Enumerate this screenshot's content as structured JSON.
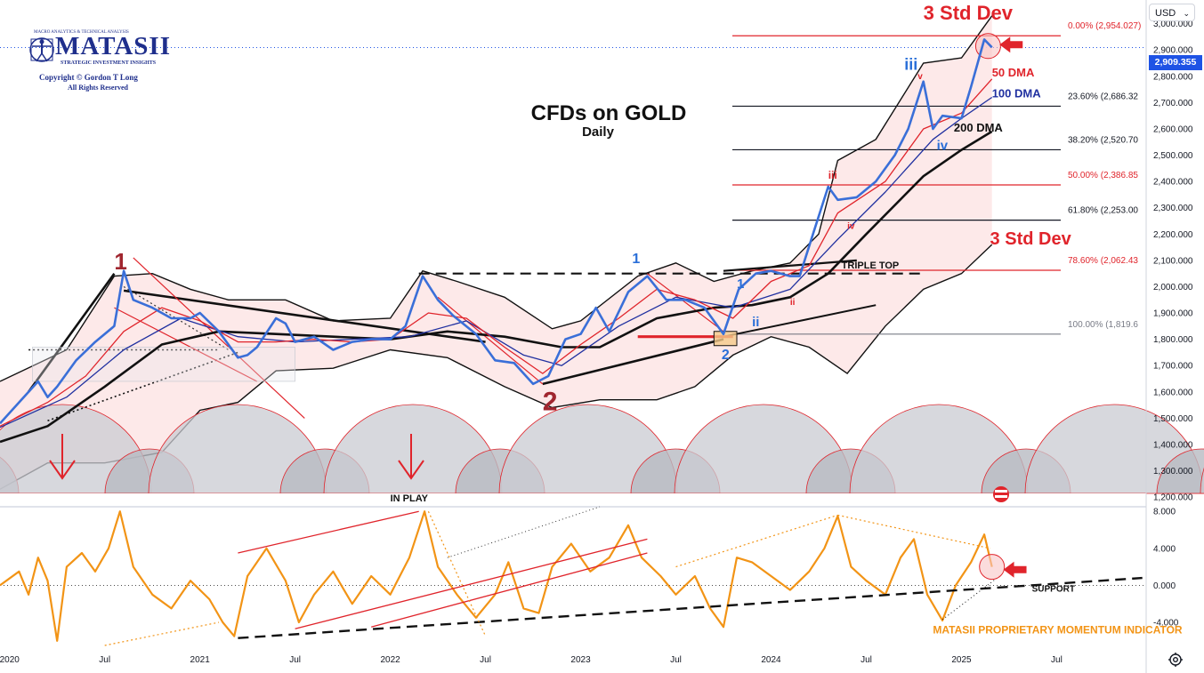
{
  "chart_data": {
    "type": "line",
    "title": "CFDs on GOLD",
    "subtitle": "Daily",
    "currency": "USD",
    "last_price": "2,909.355",
    "price_axis": {
      "ticks": [
        "3,000.000",
        "2,900.000",
        "2,800.000",
        "2,700.000",
        "2,600.000",
        "2,500.000",
        "2,400.000",
        "2,300.000",
        "2,200.000",
        "2,100.000",
        "2,000.000",
        "1,900.000",
        "1,800.000",
        "1,700.000",
        "1,600.000",
        "1,500.000",
        "1,400.000",
        "1,300.000",
        "1,200.000"
      ],
      "ylim": [
        1170,
        3090
      ]
    },
    "momentum_axis": {
      "ticks": [
        "8.000",
        "4.000",
        "0.000",
        "-4.000"
      ],
      "ylim": [
        -6.5,
        8.5
      ]
    },
    "time_axis": {
      "ticks": [
        {
          "label": "2020",
          "t": 2020.0
        },
        {
          "label": "Jul",
          "t": 2020.5
        },
        {
          "label": "2021",
          "t": 2021.0
        },
        {
          "label": "Jul",
          "t": 2021.5
        },
        {
          "label": "2022",
          "t": 2022.0
        },
        {
          "label": "Jul",
          "t": 2022.5
        },
        {
          "label": "2023",
          "t": 2023.0
        },
        {
          "label": "Jul",
          "t": 2023.5
        },
        {
          "label": "2024",
          "t": 2024.0
        },
        {
          "label": "Jul",
          "t": 2024.5
        },
        {
          "label": "2025",
          "t": 2025.0
        },
        {
          "label": "Jul",
          "t": 2025.5
        }
      ],
      "xlim": [
        2019.95,
        2025.97
      ]
    },
    "series": [
      {
        "name": "Gold",
        "color": "#3a6fd8",
        "points": [
          [
            2019.95,
            1480
          ],
          [
            2020.05,
            1560
          ],
          [
            2020.15,
            1640
          ],
          [
            2020.2,
            1580
          ],
          [
            2020.25,
            1620
          ],
          [
            2020.35,
            1720
          ],
          [
            2020.45,
            1790
          ],
          [
            2020.55,
            1850
          ],
          [
            2020.6,
            2060
          ],
          [
            2020.65,
            1950
          ],
          [
            2020.75,
            1920
          ],
          [
            2020.85,
            1880
          ],
          [
            2020.95,
            1880
          ],
          [
            2021.0,
            1900
          ],
          [
            2021.1,
            1830
          ],
          [
            2021.2,
            1730
          ],
          [
            2021.25,
            1740
          ],
          [
            2021.3,
            1770
          ],
          [
            2021.4,
            1880
          ],
          [
            2021.45,
            1860
          ],
          [
            2021.5,
            1790
          ],
          [
            2021.6,
            1810
          ],
          [
            2021.7,
            1760
          ],
          [
            2021.8,
            1790
          ],
          [
            2021.9,
            1800
          ],
          [
            2022.0,
            1800
          ],
          [
            2022.08,
            1850
          ],
          [
            2022.17,
            2040
          ],
          [
            2022.25,
            1950
          ],
          [
            2022.33,
            1890
          ],
          [
            2022.45,
            1820
          ],
          [
            2022.55,
            1720
          ],
          [
            2022.65,
            1710
          ],
          [
            2022.75,
            1630
          ],
          [
            2022.83,
            1660
          ],
          [
            2022.92,
            1800
          ],
          [
            2023.0,
            1820
          ],
          [
            2023.08,
            1920
          ],
          [
            2023.15,
            1830
          ],
          [
            2023.25,
            1980
          ],
          [
            2023.35,
            2040
          ],
          [
            2023.45,
            1950
          ],
          [
            2023.55,
            1950
          ],
          [
            2023.65,
            1920
          ],
          [
            2023.75,
            1820
          ],
          [
            2023.83,
            1990
          ],
          [
            2023.92,
            2050
          ],
          [
            2024.0,
            2060
          ],
          [
            2024.1,
            2040
          ],
          [
            2024.15,
            2040
          ],
          [
            2024.22,
            2200
          ],
          [
            2024.3,
            2380
          ],
          [
            2024.35,
            2330
          ],
          [
            2024.45,
            2340
          ],
          [
            2024.55,
            2400
          ],
          [
            2024.65,
            2500
          ],
          [
            2024.72,
            2600
          ],
          [
            2024.8,
            2780
          ],
          [
            2024.85,
            2600
          ],
          [
            2024.9,
            2650
          ],
          [
            2025.0,
            2640
          ],
          [
            2025.05,
            2760
          ],
          [
            2025.12,
            2940
          ],
          [
            2025.16,
            2910
          ]
        ]
      },
      {
        "name": "50 DMA",
        "color": "#e0242b",
        "points": [
          [
            2019.95,
            1470
          ],
          [
            2020.2,
            1560
          ],
          [
            2020.4,
            1660
          ],
          [
            2020.6,
            1830
          ],
          [
            2020.8,
            1920
          ],
          [
            2021.0,
            1870
          ],
          [
            2021.2,
            1790
          ],
          [
            2021.4,
            1790
          ],
          [
            2021.6,
            1800
          ],
          [
            2021.8,
            1790
          ],
          [
            2022.0,
            1800
          ],
          [
            2022.2,
            1900
          ],
          [
            2022.4,
            1880
          ],
          [
            2022.6,
            1770
          ],
          [
            2022.8,
            1670
          ],
          [
            2023.0,
            1780
          ],
          [
            2023.2,
            1880
          ],
          [
            2023.4,
            1990
          ],
          [
            2023.6,
            1950
          ],
          [
            2023.8,
            1880
          ],
          [
            2024.0,
            2020
          ],
          [
            2024.2,
            2080
          ],
          [
            2024.35,
            2280
          ],
          [
            2024.6,
            2400
          ],
          [
            2024.8,
            2600
          ],
          [
            2025.0,
            2660
          ],
          [
            2025.16,
            2790
          ]
        ]
      },
      {
        "name": "100 DMA",
        "color": "#2030a0",
        "points": [
          [
            2019.95,
            1465
          ],
          [
            2020.3,
            1580
          ],
          [
            2020.6,
            1760
          ],
          [
            2020.9,
            1880
          ],
          [
            2021.2,
            1810
          ],
          [
            2021.5,
            1790
          ],
          [
            2021.8,
            1800
          ],
          [
            2022.1,
            1810
          ],
          [
            2022.4,
            1870
          ],
          [
            2022.7,
            1740
          ],
          [
            2022.9,
            1700
          ],
          [
            2023.2,
            1850
          ],
          [
            2023.5,
            1960
          ],
          [
            2023.8,
            1920
          ],
          [
            2024.1,
            1990
          ],
          [
            2024.35,
            2180
          ],
          [
            2024.6,
            2360
          ],
          [
            2024.85,
            2560
          ],
          [
            2025.0,
            2640
          ],
          [
            2025.16,
            2720
          ]
        ]
      },
      {
        "name": "200 DMA",
        "color": "#111111",
        "points": [
          [
            2019.95,
            1410
          ],
          [
            2020.2,
            1470
          ],
          [
            2020.5,
            1620
          ],
          [
            2020.8,
            1780
          ],
          [
            2021.1,
            1830
          ],
          [
            2021.4,
            1820
          ],
          [
            2021.7,
            1810
          ],
          [
            2022.0,
            1800
          ],
          [
            2022.3,
            1830
          ],
          [
            2022.6,
            1810
          ],
          [
            2022.9,
            1770
          ],
          [
            2023.1,
            1770
          ],
          [
            2023.4,
            1880
          ],
          [
            2023.7,
            1920
          ],
          [
            2023.9,
            1930
          ],
          [
            2024.1,
            1960
          ],
          [
            2024.3,
            2050
          ],
          [
            2024.5,
            2200
          ],
          [
            2024.8,
            2420
          ],
          [
            2025.0,
            2520
          ],
          [
            2025.16,
            2590
          ]
        ]
      },
      {
        "name": "Momentum",
        "color": "#f29416",
        "points": [
          [
            2019.95,
            0.0
          ],
          [
            2020.05,
            1.5
          ],
          [
            2020.1,
            -1.0
          ],
          [
            2020.15,
            3.0
          ],
          [
            2020.2,
            0.5
          ],
          [
            2020.25,
            -6.0
          ],
          [
            2020.3,
            2.0
          ],
          [
            2020.38,
            3.5
          ],
          [
            2020.45,
            1.5
          ],
          [
            2020.52,
            4.0
          ],
          [
            2020.58,
            8.0
          ],
          [
            2020.65,
            2.0
          ],
          [
            2020.75,
            -1.0
          ],
          [
            2020.85,
            -2.5
          ],
          [
            2020.95,
            0.5
          ],
          [
            2021.05,
            -1.5
          ],
          [
            2021.12,
            -4.0
          ],
          [
            2021.18,
            -5.5
          ],
          [
            2021.25,
            1.0
          ],
          [
            2021.35,
            4.0
          ],
          [
            2021.45,
            0.5
          ],
          [
            2021.52,
            -4.0
          ],
          [
            2021.6,
            -1.0
          ],
          [
            2021.7,
            1.5
          ],
          [
            2021.8,
            -2.0
          ],
          [
            2021.9,
            1.0
          ],
          [
            2022.0,
            -1.0
          ],
          [
            2022.1,
            3.0
          ],
          [
            2022.18,
            8.0
          ],
          [
            2022.25,
            2.0
          ],
          [
            2022.35,
            -1.0
          ],
          [
            2022.45,
            -3.5
          ],
          [
            2022.55,
            -1.0
          ],
          [
            2022.62,
            2.5
          ],
          [
            2022.7,
            -2.5
          ],
          [
            2022.78,
            -3.0
          ],
          [
            2022.85,
            2.0
          ],
          [
            2022.95,
            4.5
          ],
          [
            2023.05,
            1.5
          ],
          [
            2023.15,
            3.0
          ],
          [
            2023.25,
            6.5
          ],
          [
            2023.32,
            3.0
          ],
          [
            2023.42,
            1.0
          ],
          [
            2023.5,
            -1.0
          ],
          [
            2023.6,
            1.0
          ],
          [
            2023.68,
            -2.5
          ],
          [
            2023.75,
            -4.5
          ],
          [
            2023.82,
            3.0
          ],
          [
            2023.9,
            2.5
          ],
          [
            2024.0,
            1.0
          ],
          [
            2024.1,
            -0.5
          ],
          [
            2024.2,
            1.5
          ],
          [
            2024.28,
            4.0
          ],
          [
            2024.35,
            7.5
          ],
          [
            2024.42,
            2.0
          ],
          [
            2024.5,
            0.5
          ],
          [
            2024.6,
            -1.0
          ],
          [
            2024.68,
            3.0
          ],
          [
            2024.75,
            5.0
          ],
          [
            2024.82,
            -1.0
          ],
          [
            2024.9,
            -3.8
          ],
          [
            2024.97,
            0.0
          ],
          [
            2025.05,
            2.5
          ],
          [
            2025.12,
            5.5
          ],
          [
            2025.16,
            2.0
          ]
        ]
      }
    ],
    "fibonacci": [
      {
        "label": "0.00% (2,954.027)",
        "value": 2954.027,
        "color": "#e0242b"
      },
      {
        "label": "23.60% (2,686.32",
        "value": 2686.32,
        "color": "#131722"
      },
      {
        "label": "38.20% (2,520.70",
        "value": 2520.7,
        "color": "#131722"
      },
      {
        "label": "50.00% (2,386.85",
        "value": 2386.85,
        "color": "#e0242b"
      },
      {
        "label": "61.80% (2,253.00",
        "value": 2253.0,
        "color": "#131722"
      },
      {
        "label": "78.60% (2,062.43",
        "value": 2062.43,
        "color": "#e0242b"
      },
      {
        "label": "100.00% (1,819.6",
        "value": 1819.6,
        "color": "#787b86"
      }
    ],
    "annotations": [
      {
        "text": "3 Std Dev",
        "color": "#e0242b",
        "t": 2024.8,
        "y": 3015,
        "size": 22
      },
      {
        "text": "3 Std Dev",
        "color": "#e0242b",
        "t": 2025.15,
        "y": 2160,
        "size": 20
      },
      {
        "text": "50 DMA",
        "color": "#e0242b",
        "t": 2025.16,
        "y": 2800,
        "size": 13
      },
      {
        "text": "100 DMA",
        "color": "#2030a0",
        "t": 2025.16,
        "y": 2720,
        "size": 13
      },
      {
        "text": "200 DMA",
        "color": "#111111",
        "t": 2024.96,
        "y": 2590,
        "size": 13
      },
      {
        "text": "TRIPLE TOP",
        "color": "#111111",
        "t": 2024.37,
        "y": 2070,
        "size": 11
      },
      {
        "text": "IN PLAY",
        "color": "#111111",
        "t": 2022.0,
        "y": 1183,
        "size": 11
      },
      {
        "text": "1",
        "color": "#a0262f",
        "t": 2020.55,
        "y": 2065,
        "size": 26
      },
      {
        "text": "2",
        "color": "#a0262f",
        "t": 2022.8,
        "y": 1530,
        "size": 30
      },
      {
        "text": "1",
        "color": "#2a6fd8",
        "t": 2023.27,
        "y": 2090,
        "size": 16
      },
      {
        "text": "2",
        "color": "#2a6fd8",
        "t": 2023.74,
        "y": 1725,
        "size": 16
      },
      {
        "text": "1",
        "color": "#2a6fd8",
        "t": 2023.82,
        "y": 1995,
        "size": 15
      },
      {
        "text": "ii",
        "color": "#2a6fd8",
        "t": 2023.9,
        "y": 1850,
        "size": 15
      },
      {
        "text": "iii",
        "color": "#2a6fd8",
        "t": 2024.7,
        "y": 2825,
        "size": 18
      },
      {
        "text": "iv",
        "color": "#2a6fd8",
        "t": 2024.87,
        "y": 2520,
        "size": 15
      },
      {
        "text": "iii",
        "color": "#e0242b",
        "t": 2024.3,
        "y": 2410,
        "size": 12
      },
      {
        "text": "iv",
        "color": "#e0242b",
        "t": 2024.4,
        "y": 2220,
        "size": 10
      },
      {
        "text": "v",
        "color": "#e0242b",
        "t": 2024.77,
        "y": 2790,
        "size": 10
      },
      {
        "text": "ii",
        "color": "#e0242b",
        "t": 2024.1,
        "y": 1930,
        "size": 10
      },
      {
        "text": "SUPPORT",
        "color": "#111111",
        "t": 2025.37,
        "y_mom": -0.7,
        "size": 10
      },
      {
        "text": "MATASII PROPRIETARY MOMENTUM INDICATOR",
        "color": "#f29416",
        "t": 2024.85,
        "y_mom": -5.2,
        "size": 12
      }
    ]
  },
  "logo": {
    "top_line": "MACRO ANALYTICS & TECHNICAL ANALYSIS",
    "brand": "MATASII",
    "tagline": "STRATEGIC INVESTMENT INSIGHTS",
    "copyright": "Copyright © Gordon T Long",
    "rights": "All Rights Reserved"
  },
  "colors": {
    "accent": "#1e53e5",
    "red": "#e0242b",
    "orange": "#f29416",
    "band": "#fde3e3"
  }
}
